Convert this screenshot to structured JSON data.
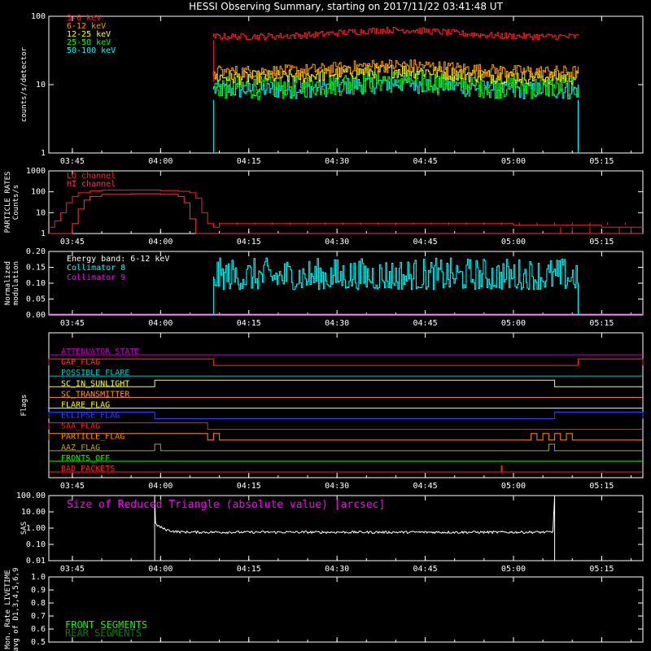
{
  "title": "HESSI Observing Summary, starting on 2017/11/22 03:41:48 UT",
  "time_axis": {
    "start": "03:41",
    "end": "05:22",
    "ticks": [
      "03:45",
      "04:00",
      "04:15",
      "04:30",
      "04:45",
      "05:00",
      "05:15"
    ]
  },
  "chart_data": [
    {
      "id": "count_rates",
      "type": "line",
      "ylabel": "counts/s/detector",
      "yscale": "log",
      "ylim": [
        1,
        100
      ],
      "yticks": [
        "1",
        "10",
        "100"
      ],
      "time_range": [
        "04:09",
        "05:11"
      ],
      "series": [
        {
          "name": "3-6 keV",
          "color": "#ff2020",
          "start": "04:09",
          "end": "05:11",
          "value_range": [
            45,
            56
          ]
        },
        {
          "name": "6-12 keV",
          "color": "#ff9a00",
          "start": "04:09",
          "end": "05:11",
          "value_range": [
            12,
            19
          ]
        },
        {
          "name": "12-25 keV",
          "color": "#ffff00",
          "start": "04:09",
          "end": "05:11",
          "value_range": [
            10,
            16
          ]
        },
        {
          "name": "25-50 keV",
          "color": "#00ff00",
          "start": "04:09",
          "end": "05:11",
          "value_range": [
            6,
            13
          ]
        },
        {
          "name": "50-100 keV",
          "color": "#00ffff",
          "start": "04:09",
          "end": "05:11",
          "value_range": [
            6,
            11
          ]
        }
      ]
    },
    {
      "id": "particle_rates",
      "type": "line",
      "ylabel": [
        "PARTICLE RATES",
        "Counts/s"
      ],
      "yscale": "log",
      "ylim": [
        1,
        1000
      ],
      "yticks": [
        "1",
        "10",
        "100",
        "1000"
      ],
      "series": [
        {
          "name": "LO channel",
          "color": "#ff2020",
          "x": [
            "03:41",
            "03:42",
            "03:43",
            "03:44",
            "03:45",
            "03:46",
            "03:48",
            "03:50",
            "03:55",
            "04:00",
            "04:03",
            "04:05",
            "04:06",
            "04:07",
            "04:08",
            "04:09",
            "04:10",
            "04:15",
            "04:30",
            "04:45",
            "05:00",
            "05:15",
            "05:22"
          ],
          "y": [
            2,
            4,
            10,
            30,
            60,
            90,
            110,
            120,
            120,
            115,
            105,
            90,
            50,
            10,
            3,
            2,
            3,
            3,
            3,
            3,
            2.5,
            2,
            2
          ]
        },
        {
          "name": "HI channel",
          "color": "#ff3050",
          "x": [
            "03:41",
            "03:44",
            "03:45",
            "03:46",
            "03:47",
            "03:48",
            "03:50",
            "03:55",
            "04:00",
            "04:03",
            "04:04",
            "04:05",
            "04:06",
            "04:15",
            "05:22"
          ],
          "y": [
            1,
            1,
            3,
            15,
            40,
            60,
            75,
            80,
            75,
            60,
            30,
            5,
            1,
            1,
            1
          ]
        }
      ]
    },
    {
      "id": "modulation",
      "type": "line",
      "ylabel": [
        "Normalized",
        "modulation"
      ],
      "ylim": [
        0.0,
        0.2
      ],
      "yticks": [
        "0.00",
        "0.05",
        "0.10",
        "0.15",
        "0.20"
      ],
      "annotation": "Energy band: 6-12 keV",
      "series": [
        {
          "name": "Collimator 8",
          "color": "#00ffff",
          "start": "04:09",
          "end": "05:11",
          "value_range": [
            0.08,
            0.18
          ]
        },
        {
          "name": "Collimator 9",
          "color": "#ff00ff",
          "value": 0.0
        }
      ]
    },
    {
      "id": "flags",
      "type": "line",
      "ylabel": "Flags",
      "series": [
        {
          "name": "ATTENUATOR_STATE",
          "color": "#c000c0",
          "high": []
        },
        {
          "name": "SAA_FLAG_TOP",
          "label": "GAP_FLAG",
          "color": "#ff3020",
          "high": [
            [
              "03:41",
              "04:09"
            ],
            [
              "05:11",
              "05:22"
            ]
          ]
        },
        {
          "name": "POSSIBLE_FLARE",
          "color": "#00c0c0",
          "high": []
        },
        {
          "name": "SC_IN_SUNLIGHT",
          "color": "#ffff40",
          "high": [
            [
              "03:59",
              "05:07"
            ]
          ]
        },
        {
          "name": "SC_TRANSMITTER",
          "color": "#ff9040",
          "high": []
        },
        {
          "name": "FLARE_FLAG",
          "color": "#ffff00",
          "high": []
        },
        {
          "name": "ECLIPSE_FLAG",
          "color": "#3040ff",
          "high": [
            [
              "03:41",
              "03:59"
            ],
            [
              "05:07",
              "05:22"
            ]
          ]
        },
        {
          "name": "SAA_FLAG",
          "color": "#ff2020",
          "high": [
            [
              "03:41",
              "04:08"
            ]
          ]
        },
        {
          "name": "PARTICLE_FLAG",
          "color": "#ff9000",
          "high": [
            [
              "03:41",
              "04:08"
            ],
            [
              "04:09",
              "04:10"
            ],
            [
              "05:03",
              "05:04"
            ],
            [
              "05:05",
              "05:06"
            ],
            [
              "05:07",
              "05:08"
            ],
            [
              "05:09",
              "05:10"
            ]
          ]
        },
        {
          "name": "AAZ_FLAG",
          "color": "#b0a030",
          "high": [
            [
              "03:59",
              "04:00"
            ],
            [
              "05:06",
              "05:07"
            ]
          ]
        },
        {
          "name": "FRONTS_OFF",
          "color": "#00ff00",
          "high": []
        },
        {
          "name": "BAD_PACKETS",
          "color": "#ff2020",
          "spikes": [
            "04:58"
          ]
        }
      ]
    },
    {
      "id": "sas",
      "type": "line",
      "ylabel": "SAS",
      "yscale": "log",
      "ylim": [
        0.01,
        100
      ],
      "yticks": [
        "0.01",
        "0.10",
        "1.00",
        "10.00",
        "100.00"
      ],
      "annotation": "Size of Reduced Triangle (absolute value) [arcsec]",
      "series": [
        {
          "name": "SAS",
          "color": "#ffffff",
          "start": "03:59",
          "end": "05:07",
          "typical": 0.55,
          "spikes": [
            100,
            100
          ]
        }
      ]
    },
    {
      "id": "livetime",
      "type": "line",
      "ylabel": [
        "Mon. Rate LIVETIME",
        "avg of D1,3,4,5,6,9"
      ],
      "ylim": [
        0.5,
        1.0
      ],
      "yticks": [
        "0.5",
        "0.6",
        "0.7",
        "0.8",
        "0.9",
        "1.0"
      ],
      "series": [
        {
          "name": "FRONT SEGMENTS",
          "color": "#00ff00"
        },
        {
          "name": "REAR SEGMENTS",
          "color": "#008000"
        }
      ]
    }
  ]
}
